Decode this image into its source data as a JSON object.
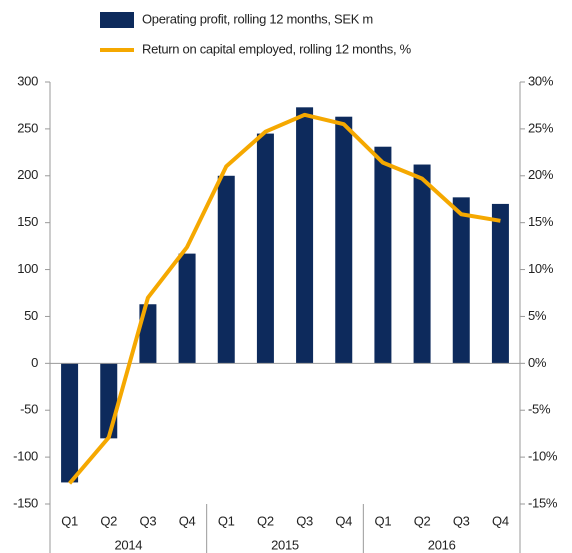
{
  "chart_data": {
    "type": "bar_line",
    "categories": [
      "Q1",
      "Q2",
      "Q3",
      "Q4",
      "Q1",
      "Q2",
      "Q3",
      "Q4",
      "Q1",
      "Q2",
      "Q3",
      "Q4"
    ],
    "years": [
      "2014",
      "2015",
      "2016"
    ],
    "series": [
      {
        "name": "Operating profit, rolling 12 months, SEK m",
        "type": "bar",
        "color": "#0d2a5c",
        "values": [
          -127,
          -80,
          63,
          117,
          200,
          245,
          273,
          263,
          231,
          212,
          177,
          170
        ]
      },
      {
        "name": "Return on capital employed, rolling 12 months, %",
        "type": "line",
        "axis": "y2",
        "color": "#f5a800",
        "values": [
          -12.8,
          -7.9,
          7.0,
          12.4,
          21.0,
          24.7,
          26.5,
          25.5,
          21.4,
          19.7,
          15.9,
          15.2
        ]
      }
    ],
    "ylim": [
      -150,
      300
    ],
    "yticks": [
      300,
      250,
      200,
      150,
      100,
      50,
      0,
      -50,
      -100,
      -150
    ],
    "y2lim": [
      -15,
      30
    ],
    "y2ticks": [
      {
        "value": 30,
        "label": "30%"
      },
      {
        "value": 25,
        "label": "25%"
      },
      {
        "value": 20,
        "label": "20%"
      },
      {
        "value": 15,
        "label": "15%"
      },
      {
        "value": 10,
        "label": "10%"
      },
      {
        "value": 5,
        "label": "5%"
      },
      {
        "value": 0,
        "label": "0%"
      },
      {
        "value": -5,
        "label": "-5%"
      },
      {
        "value": -10,
        "label": "-10%"
      },
      {
        "value": -15,
        "label": "-15%"
      }
    ],
    "grid": false
  }
}
